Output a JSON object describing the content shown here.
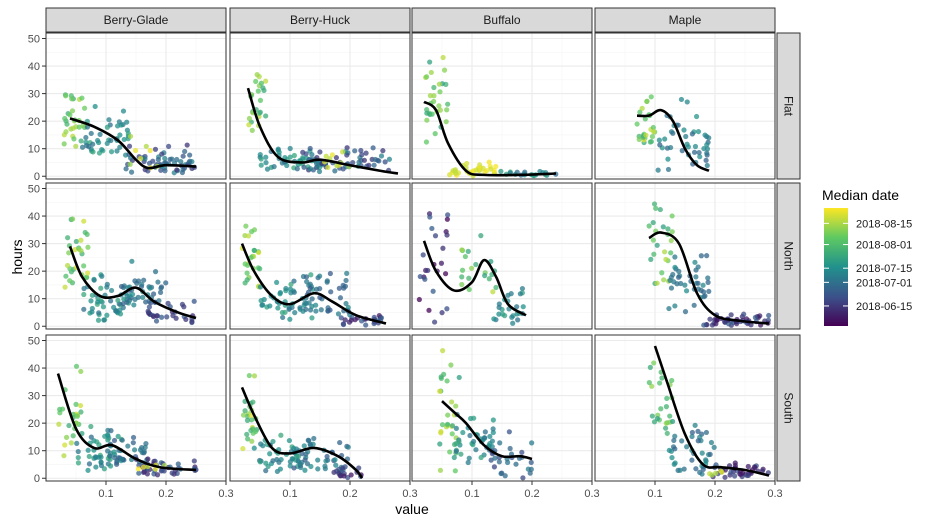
{
  "chart_data": {
    "type": "scatter",
    "columns": [
      "Berry-Glade",
      "Berry-Huck",
      "Buffalo",
      "Maple"
    ],
    "rows": [
      "Flat",
      "North",
      "South"
    ],
    "xlabel": "value",
    "ylabel": "hours",
    "xlim": [
      0,
      0.3
    ],
    "ylim": [
      -1,
      52
    ],
    "x_ticks": [
      0.1,
      0.2,
      0.3
    ],
    "x_tick_labels": [
      "0.1",
      "0.2",
      "0.3"
    ],
    "y_ticks": [
      0,
      10,
      20,
      30,
      40,
      50
    ],
    "y_tick_labels": [
      "0",
      "10",
      "20",
      "30",
      "40",
      "50"
    ],
    "grid": true,
    "legend": {
      "title": "Median date",
      "placement": "right",
      "labels": [
        "2018-08-15",
        "2018-08-01",
        "2018-07-15",
        "2018-07-01",
        "2018-06-15"
      ],
      "colors": [
        "#fde725",
        "#5ec962",
        "#21918c",
        "#3b528b",
        "#440154"
      ]
    },
    "colors": {
      "panel_border": "#333333",
      "strip_fill": "#d9d9d9",
      "grid_major": "#ebebeb",
      "grid_minor": "#f5f5f5",
      "smooth": "#000000"
    },
    "panels": [
      {
        "column": "Berry-Glade",
        "row": "Flat",
        "x_range": [
          0.02,
          0.25
        ],
        "clusters": [
          {
            "x": [
              0.03,
              0.07
            ],
            "y": [
              8,
              35
            ],
            "c": [
              0.6,
              0.95
            ],
            "n": 30
          },
          {
            "x": [
              0.06,
              0.14
            ],
            "y": [
              5,
              28
            ],
            "c": [
              0.35,
              0.6
            ],
            "n": 45
          },
          {
            "x": [
              0.13,
              0.25
            ],
            "y": [
              1,
              12
            ],
            "c": [
              0.15,
              0.45
            ],
            "n": 60
          },
          {
            "x": [
              0.14,
              0.19
            ],
            "y": [
              2,
              18
            ],
            "c": [
              0.8,
              1.0
            ],
            "n": 8
          }
        ],
        "smooth": [
          [
            0.04,
            21
          ],
          [
            0.08,
            18
          ],
          [
            0.12,
            13
          ],
          [
            0.15,
            6
          ],
          [
            0.17,
            3
          ],
          [
            0.2,
            4
          ],
          [
            0.25,
            3.5
          ]
        ]
      },
      {
        "column": "Berry-Huck",
        "row": "Flat",
        "x_range": [
          0.02,
          0.28
        ],
        "clusters": [
          {
            "x": [
              0.03,
              0.06
            ],
            "y": [
              15,
              45
            ],
            "c": [
              0.6,
              0.95
            ],
            "n": 25
          },
          {
            "x": [
              0.05,
              0.15
            ],
            "y": [
              2,
              12
            ],
            "c": [
              0.35,
              0.6
            ],
            "n": 50
          },
          {
            "x": [
              0.12,
              0.27
            ],
            "y": [
              1,
              12
            ],
            "c": [
              0.15,
              0.45
            ],
            "n": 60
          },
          {
            "x": [
              0.15,
              0.2
            ],
            "y": [
              3,
              10
            ],
            "c": [
              0.85,
              1.0
            ],
            "n": 10
          }
        ],
        "smooth": [
          [
            0.03,
            32
          ],
          [
            0.05,
            18
          ],
          [
            0.08,
            7
          ],
          [
            0.12,
            5
          ],
          [
            0.15,
            6
          ],
          [
            0.2,
            4
          ],
          [
            0.25,
            2
          ],
          [
            0.28,
            1
          ]
        ]
      },
      {
        "column": "Buffalo",
        "row": "Flat",
        "x_range": [
          0.02,
          0.24
        ],
        "clusters": [
          {
            "x": [
              0.02,
              0.06
            ],
            "y": [
              10,
              50
            ],
            "c": [
              0.55,
              0.9
            ],
            "n": 30
          },
          {
            "x": [
              0.06,
              0.14
            ],
            "y": [
              0,
              6
            ],
            "c": [
              0.9,
              1.0
            ],
            "n": 35
          },
          {
            "x": [
              0.14,
              0.24
            ],
            "y": [
              0,
              2
            ],
            "c": [
              0.3,
              0.6
            ],
            "n": 20
          }
        ],
        "smooth": [
          [
            0.02,
            27
          ],
          [
            0.04,
            24
          ],
          [
            0.06,
            12
          ],
          [
            0.09,
            2
          ],
          [
            0.12,
            0.5
          ],
          [
            0.18,
            0.5
          ],
          [
            0.24,
            1
          ]
        ]
      },
      {
        "column": "Maple",
        "row": "Flat",
        "x_range": [
          0.07,
          0.19
        ],
        "clusters": [
          {
            "x": [
              0.07,
              0.1
            ],
            "y": [
              12,
              33
            ],
            "c": [
              0.6,
              0.95
            ],
            "n": 25
          },
          {
            "x": [
              0.1,
              0.19
            ],
            "y": [
              1,
              30
            ],
            "c": [
              0.3,
              0.55
            ],
            "n": 45
          }
        ],
        "smooth": [
          [
            0.07,
            22
          ],
          [
            0.09,
            22
          ],
          [
            0.11,
            24
          ],
          [
            0.13,
            20
          ],
          [
            0.15,
            10
          ],
          [
            0.17,
            4
          ],
          [
            0.19,
            2
          ]
        ]
      },
      {
        "column": "Berry-Glade",
        "row": "North",
        "x_range": [
          0.02,
          0.25
        ],
        "clusters": [
          {
            "x": [
              0.03,
              0.07
            ],
            "y": [
              10,
              45
            ],
            "c": [
              0.6,
              0.95
            ],
            "n": 30
          },
          {
            "x": [
              0.06,
              0.14
            ],
            "y": [
              2,
              20
            ],
            "c": [
              0.35,
              0.6
            ],
            "n": 50
          },
          {
            "x": [
              0.12,
              0.2
            ],
            "y": [
              5,
              25
            ],
            "c": [
              0.3,
              0.5
            ],
            "n": 40
          },
          {
            "x": [
              0.17,
              0.25
            ],
            "y": [
              1,
              10
            ],
            "c": [
              0.1,
              0.3
            ],
            "n": 30
          }
        ],
        "smooth": [
          [
            0.04,
            29
          ],
          [
            0.06,
            18
          ],
          [
            0.09,
            11
          ],
          [
            0.12,
            11
          ],
          [
            0.15,
            14
          ],
          [
            0.18,
            9
          ],
          [
            0.22,
            5
          ],
          [
            0.25,
            3
          ]
        ]
      },
      {
        "column": "Berry-Huck",
        "row": "North",
        "x_range": [
          0.02,
          0.26
        ],
        "clusters": [
          {
            "x": [
              0.02,
              0.05
            ],
            "y": [
              10,
              45
            ],
            "c": [
              0.6,
              0.95
            ],
            "n": 25
          },
          {
            "x": [
              0.05,
              0.14
            ],
            "y": [
              2,
              20
            ],
            "c": [
              0.35,
              0.6
            ],
            "n": 50
          },
          {
            "x": [
              0.12,
              0.2
            ],
            "y": [
              2,
              25
            ],
            "c": [
              0.25,
              0.5
            ],
            "n": 40
          },
          {
            "x": [
              0.18,
              0.26
            ],
            "y": [
              0,
              6
            ],
            "c": [
              0.05,
              0.3
            ],
            "n": 25
          }
        ],
        "smooth": [
          [
            0.02,
            30
          ],
          [
            0.04,
            20
          ],
          [
            0.07,
            11
          ],
          [
            0.1,
            8
          ],
          [
            0.14,
            12
          ],
          [
            0.17,
            9
          ],
          [
            0.21,
            4
          ],
          [
            0.26,
            1
          ]
        ]
      },
      {
        "column": "Buffalo",
        "row": "North",
        "x_range": [
          0.02,
          0.19
        ],
        "clusters": [
          {
            "x": [
              0.01,
              0.06
            ],
            "y": [
              0,
              50
            ],
            "c": [
              0.0,
              0.3
            ],
            "n": 25
          },
          {
            "x": [
              0.08,
              0.14
            ],
            "y": [
              10,
              35
            ],
            "c": [
              0.55,
              0.9
            ],
            "n": 20
          },
          {
            "x": [
              0.13,
              0.19
            ],
            "y": [
              0,
              15
            ],
            "c": [
              0.35,
              0.6
            ],
            "n": 25
          }
        ],
        "smooth": [
          [
            0.02,
            31
          ],
          [
            0.04,
            20
          ],
          [
            0.07,
            13
          ],
          [
            0.1,
            16
          ],
          [
            0.12,
            24
          ],
          [
            0.14,
            18
          ],
          [
            0.16,
            8
          ],
          [
            0.19,
            4
          ]
        ]
      },
      {
        "column": "Maple",
        "row": "North",
        "x_range": [
          0.09,
          0.29
        ],
        "clusters": [
          {
            "x": [
              0.09,
              0.13
            ],
            "y": [
              15,
              48
            ],
            "c": [
              0.55,
              0.9
            ],
            "n": 25
          },
          {
            "x": [
              0.12,
              0.19
            ],
            "y": [
              5,
              30
            ],
            "c": [
              0.3,
              0.5
            ],
            "n": 40
          },
          {
            "x": [
              0.18,
              0.29
            ],
            "y": [
              0,
              5
            ],
            "c": [
              0.05,
              0.3
            ],
            "n": 50
          }
        ],
        "smooth": [
          [
            0.09,
            32
          ],
          [
            0.11,
            34
          ],
          [
            0.14,
            30
          ],
          [
            0.17,
            12
          ],
          [
            0.2,
            4
          ],
          [
            0.24,
            2
          ],
          [
            0.29,
            1
          ]
        ]
      },
      {
        "column": "Berry-Glade",
        "row": "South",
        "x_range": [
          0.02,
          0.25
        ],
        "clusters": [
          {
            "x": [
              0.02,
              0.06
            ],
            "y": [
              5,
              52
            ],
            "c": [
              0.6,
              0.95
            ],
            "n": 25
          },
          {
            "x": [
              0.05,
              0.13
            ],
            "y": [
              2,
              20
            ],
            "c": [
              0.35,
              0.6
            ],
            "n": 50
          },
          {
            "x": [
              0.1,
              0.17
            ],
            "y": [
              5,
              18
            ],
            "c": [
              0.25,
              0.45
            ],
            "n": 30
          },
          {
            "x": [
              0.15,
              0.25
            ],
            "y": [
              1,
              8
            ],
            "c": [
              0.1,
              0.35
            ],
            "n": 40
          },
          {
            "x": [
              0.15,
              0.2
            ],
            "y": [
              2,
              6
            ],
            "c": [
              0.85,
              1.0
            ],
            "n": 6
          }
        ],
        "smooth": [
          [
            0.02,
            38
          ],
          [
            0.05,
            18
          ],
          [
            0.08,
            11
          ],
          [
            0.11,
            12
          ],
          [
            0.15,
            7
          ],
          [
            0.19,
            4
          ],
          [
            0.25,
            3
          ]
        ]
      },
      {
        "column": "Berry-Huck",
        "row": "South",
        "x_range": [
          0.02,
          0.22
        ],
        "clusters": [
          {
            "x": [
              0.02,
              0.05
            ],
            "y": [
              10,
              40
            ],
            "c": [
              0.6,
              0.95
            ],
            "n": 25
          },
          {
            "x": [
              0.04,
              0.14
            ],
            "y": [
              2,
              20
            ],
            "c": [
              0.35,
              0.6
            ],
            "n": 50
          },
          {
            "x": [
              0.1,
              0.2
            ],
            "y": [
              2,
              18
            ],
            "c": [
              0.25,
              0.5
            ],
            "n": 40
          },
          {
            "x": [
              0.17,
              0.22
            ],
            "y": [
              0,
              5
            ],
            "c": [
              0.05,
              0.3
            ],
            "n": 15
          }
        ],
        "smooth": [
          [
            0.02,
            33
          ],
          [
            0.04,
            23
          ],
          [
            0.07,
            11
          ],
          [
            0.1,
            9
          ],
          [
            0.14,
            11
          ],
          [
            0.18,
            8
          ],
          [
            0.21,
            3
          ],
          [
            0.22,
            0
          ]
        ]
      },
      {
        "column": "Buffalo",
        "row": "South",
        "x_range": [
          0.05,
          0.2
        ],
        "clusters": [
          {
            "x": [
              0.04,
              0.08
            ],
            "y": [
              2,
              52
            ],
            "c": [
              0.55,
              0.95
            ],
            "n": 30
          },
          {
            "x": [
              0.07,
              0.14
            ],
            "y": [
              5,
              25
            ],
            "c": [
              0.35,
              0.6
            ],
            "n": 40
          },
          {
            "x": [
              0.13,
              0.2
            ],
            "y": [
              0,
              20
            ],
            "c": [
              0.2,
              0.45
            ],
            "n": 30
          }
        ],
        "smooth": [
          [
            0.05,
            28
          ],
          [
            0.07,
            24
          ],
          [
            0.09,
            20
          ],
          [
            0.12,
            12
          ],
          [
            0.15,
            8
          ],
          [
            0.18,
            8
          ],
          [
            0.2,
            7
          ]
        ]
      },
      {
        "column": "Maple",
        "row": "South",
        "x_range": [
          0.1,
          0.29
        ],
        "clusters": [
          {
            "x": [
              0.09,
              0.13
            ],
            "y": [
              15,
              50
            ],
            "c": [
              0.55,
              0.9
            ],
            "n": 25
          },
          {
            "x": [
              0.12,
              0.2
            ],
            "y": [
              1,
              25
            ],
            "c": [
              0.3,
              0.5
            ],
            "n": 40
          },
          {
            "x": [
              0.19,
              0.29
            ],
            "y": [
              0,
              6
            ],
            "c": [
              0.05,
              0.3
            ],
            "n": 40
          },
          {
            "x": [
              0.19,
              0.22
            ],
            "y": [
              1,
              4
            ],
            "c": [
              0.85,
              1.0
            ],
            "n": 5
          }
        ],
        "smooth": [
          [
            0.1,
            48
          ],
          [
            0.12,
            35
          ],
          [
            0.15,
            16
          ],
          [
            0.18,
            5
          ],
          [
            0.21,
            4
          ],
          [
            0.25,
            3
          ],
          [
            0.29,
            1
          ]
        ]
      }
    ]
  }
}
